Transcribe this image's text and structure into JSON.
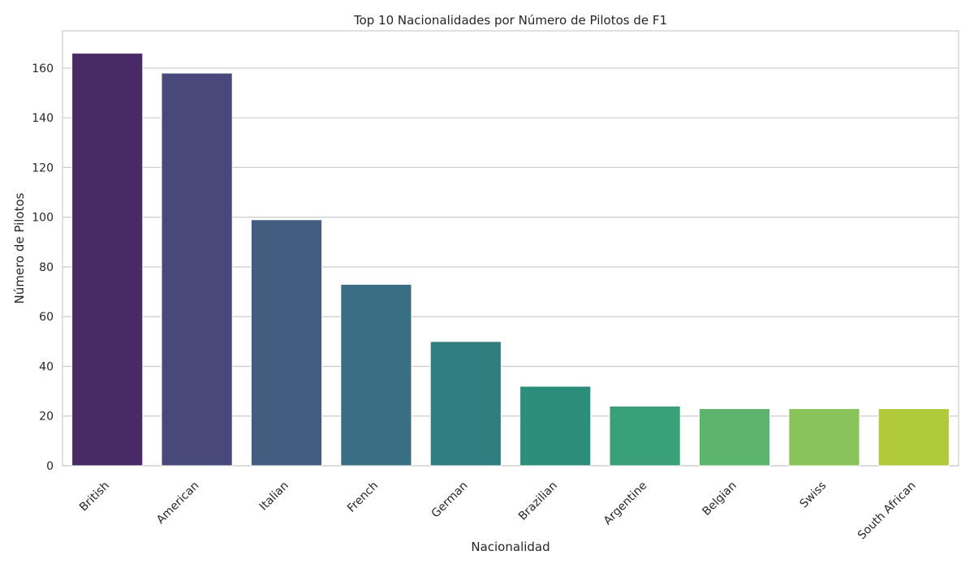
{
  "chart_data": {
    "type": "bar",
    "title": "Top 10 Nacionalidades por Número de Pilotos de F1",
    "xlabel": "Nacionalidad",
    "ylabel": "Número de Pilotos",
    "categories": [
      "British",
      "American",
      "Italian",
      "French",
      "German",
      "Brazilian",
      "Argentine",
      "Belgian",
      "Swiss",
      "South African"
    ],
    "values": [
      166,
      158,
      99,
      73,
      50,
      32,
      24,
      23,
      23,
      23
    ],
    "ylim": [
      0,
      175
    ],
    "yticks": [
      0,
      20,
      40,
      60,
      80,
      100,
      120,
      140,
      160
    ],
    "grid": "horizontal",
    "palette": "viridis",
    "colors": [
      "#482a67",
      "#48487a",
      "#435d80",
      "#3a6e82",
      "#307d80",
      "#2c8d7b",
      "#3aa079",
      "#5db56d",
      "#89c45a",
      "#b1ca3a"
    ]
  }
}
